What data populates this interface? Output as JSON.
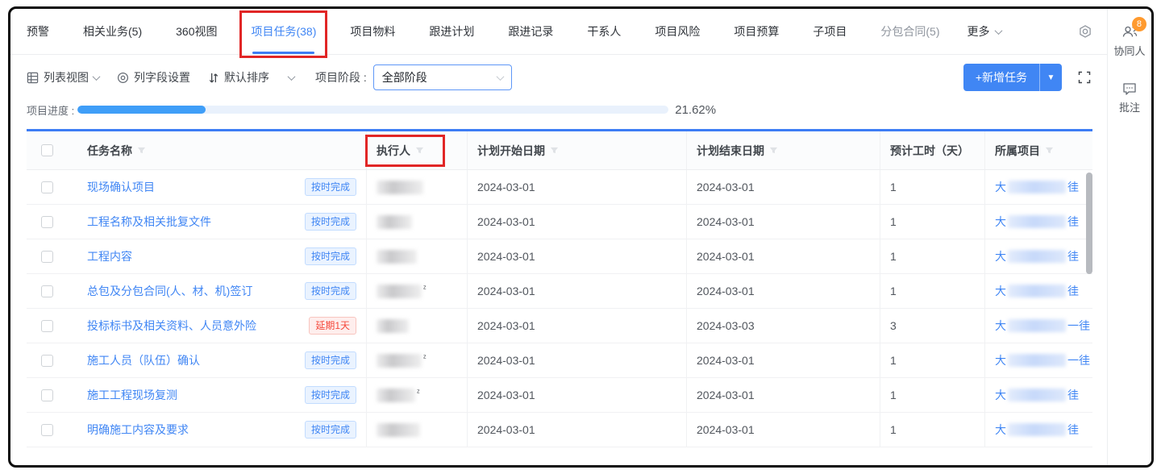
{
  "colors": {
    "accent": "#4086f4",
    "accent_line": "#3d7df5",
    "annotation_red": "#e12626",
    "orange_badge": "#ff9a2e",
    "link_blue": "#4086f4",
    "progress_fill": "#3f9ef8",
    "badge_ontime_text": "#4086f4",
    "badge_delayed_text": "#f5483b"
  },
  "tabs": {
    "items": [
      {
        "label": "预警"
      },
      {
        "label": "相关业务(5)"
      },
      {
        "label": "360视图"
      },
      {
        "label": "项目任务(38)",
        "active": true,
        "annotated": true
      },
      {
        "label": "项目物料"
      },
      {
        "label": "跟进计划"
      },
      {
        "label": "跟进记录"
      },
      {
        "label": "干系人"
      },
      {
        "label": "项目风险"
      },
      {
        "label": "项目预算"
      },
      {
        "label": "子项目"
      },
      {
        "label": "分包合同(5)",
        "muted": true
      }
    ],
    "more_label": "更多"
  },
  "toolbar": {
    "view_label": "列表视图",
    "column_settings_label": "列字段设置",
    "sort_label": "默认排序",
    "stage_label": "项目阶段 :",
    "stage_value": "全部阶段",
    "add_button_label": "+新增任务"
  },
  "progress": {
    "label": "项目进度 :",
    "percent": 21.62,
    "value_text": "21.62%"
  },
  "table": {
    "columns": [
      {
        "label": "任务名称",
        "filter": true
      },
      {
        "label": "执行人",
        "filter": true,
        "annotated": true
      },
      {
        "label": "计划开始日期",
        "filter": true
      },
      {
        "label": "计划结束日期",
        "filter": true
      },
      {
        "label": "预计工时（天）",
        "filter": false
      },
      {
        "label": "所属项目",
        "filter": true
      }
    ],
    "rows": [
      {
        "task": "现场确认项目",
        "status": "按时完成",
        "status_type": "on-time",
        "start": "2024-03-01",
        "end": "2024-03-01",
        "hours": "1",
        "executor_masked": true,
        "executor_w": 58,
        "artifact": false,
        "project_prefix": "大",
        "project_masked": true,
        "project_suffix": "徍"
      },
      {
        "task": "工程名称及相关批复文件",
        "status": "按时完成",
        "status_type": "on-time",
        "start": "2024-03-01",
        "end": "2024-03-01",
        "hours": "1",
        "executor_masked": true,
        "executor_w": 44,
        "artifact": false,
        "project_prefix": "大",
        "project_masked": true,
        "project_suffix": "徍"
      },
      {
        "task": "工程内容",
        "status": "按时完成",
        "status_type": "on-time",
        "start": "2024-03-01",
        "end": "2024-03-01",
        "hours": "1",
        "executor_masked": true,
        "executor_w": 50,
        "artifact": false,
        "project_prefix": "大",
        "project_masked": true,
        "project_suffix": "徍"
      },
      {
        "task": "总包及分包合同(人、材、机)签订",
        "status": "按时完成",
        "status_type": "on-time",
        "start": "2024-03-01",
        "end": "2024-03-01",
        "hours": "1",
        "executor_masked": true,
        "executor_w": 56,
        "artifact": true,
        "project_prefix": "大",
        "project_masked": true,
        "project_suffix": "徍"
      },
      {
        "task": "投标标书及相关资料、人员意外险",
        "status": "延期1天",
        "status_type": "delayed",
        "start": "2024-03-01",
        "end": "2024-03-03",
        "hours": "3",
        "executor_masked": true,
        "executor_w": 40,
        "artifact": false,
        "project_prefix": "大",
        "project_masked": true,
        "project_suffix": "一徍"
      },
      {
        "task": "施工人员（队伍）确认",
        "status": "按时完成",
        "status_type": "on-time",
        "start": "2024-03-01",
        "end": "2024-03-01",
        "hours": "1",
        "executor_masked": true,
        "executor_w": 56,
        "artifact": true,
        "project_prefix": "大",
        "project_masked": true,
        "project_suffix": "一徍"
      },
      {
        "task": "施工工程现场复测",
        "status": "按时完成",
        "status_type": "on-time",
        "start": "2024-03-01",
        "end": "2024-03-01",
        "hours": "1",
        "executor_masked": true,
        "executor_w": 48,
        "artifact": true,
        "project_prefix": "大",
        "project_masked": true,
        "project_suffix": "徍"
      },
      {
        "task": "明确施工内容及要求",
        "status": "按时完成",
        "status_type": "on-time",
        "start": "2024-03-01",
        "end": "2024-03-01",
        "hours": "1",
        "executor_masked": true,
        "executor_w": 54,
        "artifact": false,
        "project_prefix": "大",
        "project_masked": true,
        "project_suffix": "徍"
      }
    ]
  },
  "sidebar": {
    "collaborators_label": "协同人",
    "collaborators_badge": "8",
    "annotate_label": "批注"
  }
}
